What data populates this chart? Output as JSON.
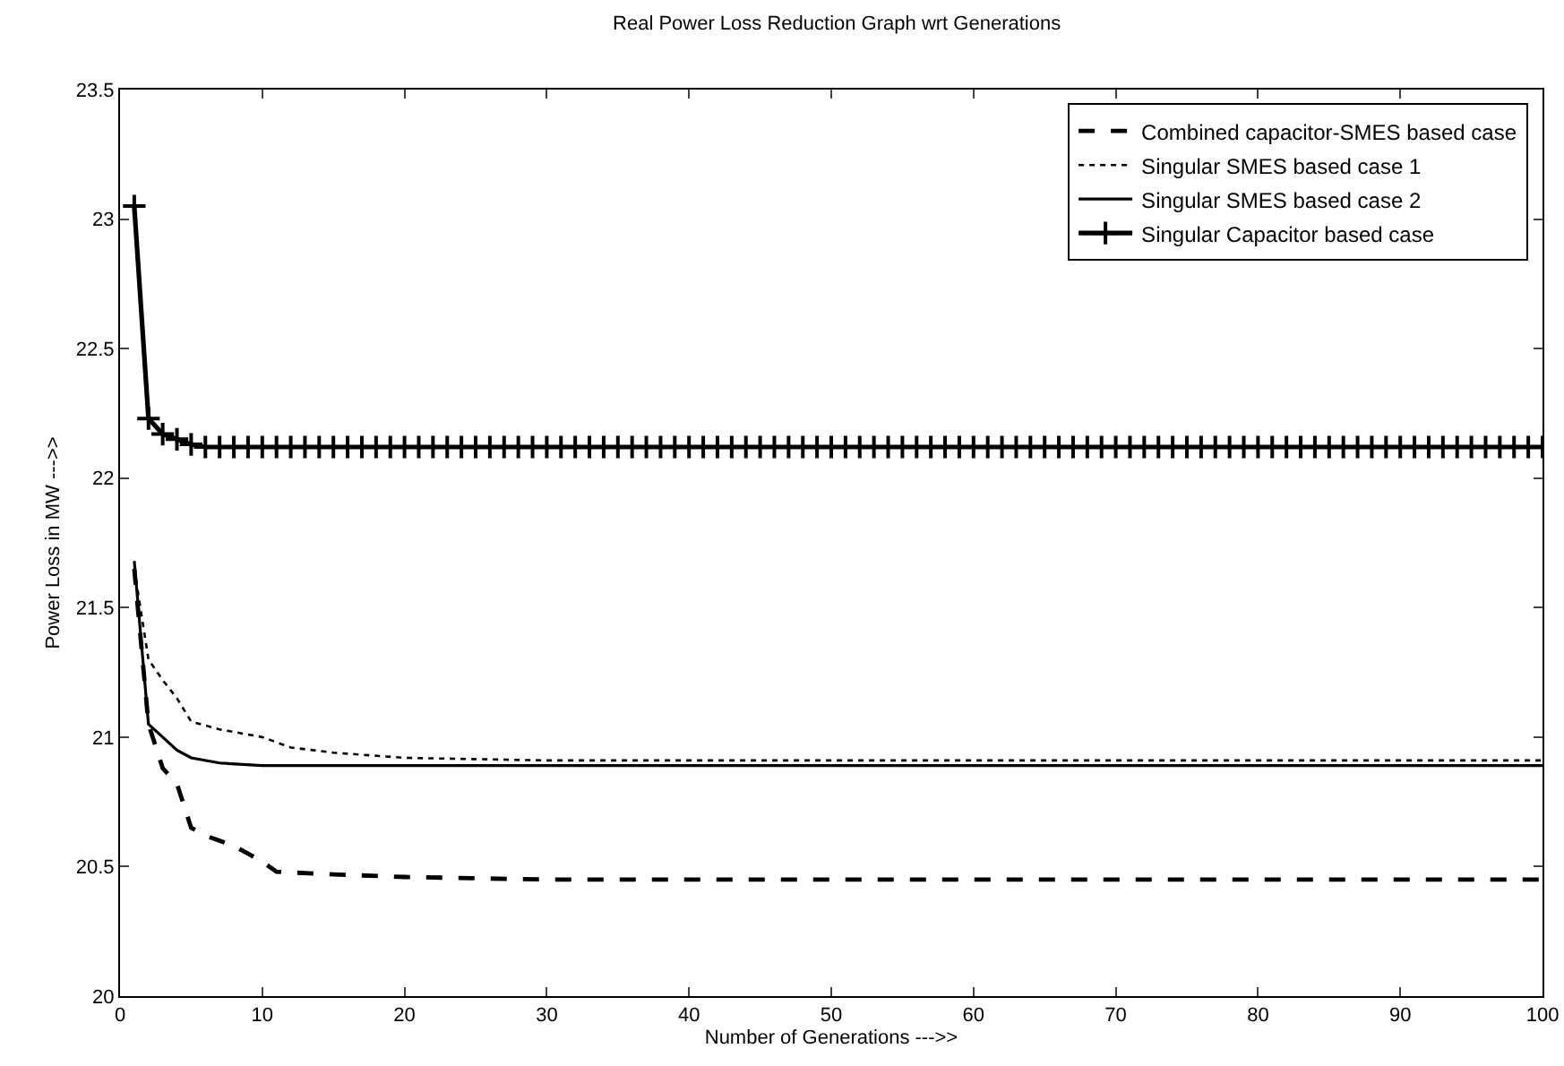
{
  "chart_data": {
    "type": "line",
    "title": "Real Power Loss Reduction Graph wrt Generations",
    "xlabel": "Number of Generations --->>",
    "ylabel": "Power Loss in MW --->>",
    "xlim": [
      0,
      100
    ],
    "xticks": [
      0,
      10,
      20,
      30,
      40,
      50,
      60,
      70,
      80,
      90,
      100
    ],
    "ylim": [
      20,
      23.5
    ],
    "yticks": [
      20,
      20.5,
      21,
      21.5,
      22,
      22.5,
      23,
      23.5
    ],
    "grid": false,
    "legend": "top right",
    "marker": "none",
    "series": [
      {
        "name": "Combined capacitor-SMES based case",
        "color": "#000000",
        "line_style": "dashed",
        "x": [
          1,
          2,
          3,
          4,
          5,
          6,
          8,
          10,
          11,
          15,
          20,
          30,
          100
        ],
        "values": [
          21.65,
          21.05,
          20.88,
          20.82,
          20.65,
          20.62,
          20.58,
          20.52,
          20.48,
          20.47,
          20.46,
          20.45,
          20.45
        ]
      },
      {
        "name": "Singular SMES based case 1",
        "color": "#000000",
        "line_style": "dotted",
        "x": [
          1,
          2,
          3,
          4,
          5,
          7,
          10,
          12,
          15,
          20,
          30,
          100
        ],
        "values": [
          21.65,
          21.3,
          21.22,
          21.15,
          21.06,
          21.03,
          21.0,
          20.96,
          20.94,
          20.92,
          20.91,
          20.91
        ]
      },
      {
        "name": "Singular SMES based case 2",
        "color": "#000000",
        "line_style": "solid",
        "x": [
          1,
          2,
          3,
          4,
          5,
          7,
          10,
          100
        ],
        "values": [
          21.68,
          21.05,
          21.0,
          20.95,
          20.92,
          20.9,
          20.89,
          20.89
        ]
      },
      {
        "name": "Singular Capacitor based case",
        "color": "#000000",
        "line_style": "solid",
        "marker": "cross",
        "x": [
          1,
          2,
          3,
          4,
          5,
          6,
          7,
          8,
          9,
          10,
          11,
          12,
          13,
          14,
          15,
          16,
          17,
          18,
          19,
          20,
          21,
          22,
          23,
          24,
          25,
          26,
          27,
          28,
          29,
          30,
          31,
          32,
          33,
          34,
          35,
          36,
          37,
          38,
          39,
          40,
          41,
          42,
          43,
          44,
          45,
          46,
          47,
          48,
          49,
          50,
          51,
          52,
          53,
          54,
          55,
          56,
          57,
          58,
          59,
          60,
          61,
          62,
          63,
          64,
          65,
          66,
          67,
          68,
          69,
          70,
          71,
          72,
          73,
          74,
          75,
          76,
          77,
          78,
          79,
          80,
          81,
          82,
          83,
          84,
          85,
          86,
          87,
          88,
          89,
          90,
          91,
          92,
          93,
          94,
          95,
          96,
          97,
          98,
          99,
          100
        ],
        "values": [
          23.05,
          22.23,
          22.17,
          22.15,
          22.13,
          22.12,
          22.12,
          22.12,
          22.12,
          22.12,
          22.12,
          22.12,
          22.12,
          22.12,
          22.12,
          22.12,
          22.12,
          22.12,
          22.12,
          22.12,
          22.12,
          22.12,
          22.12,
          22.12,
          22.12,
          22.12,
          22.12,
          22.12,
          22.12,
          22.12,
          22.12,
          22.12,
          22.12,
          22.12,
          22.12,
          22.12,
          22.12,
          22.12,
          22.12,
          22.12,
          22.12,
          22.12,
          22.12,
          22.12,
          22.12,
          22.12,
          22.12,
          22.12,
          22.12,
          22.12,
          22.12,
          22.12,
          22.12,
          22.12,
          22.12,
          22.12,
          22.12,
          22.12,
          22.12,
          22.12,
          22.12,
          22.12,
          22.12,
          22.12,
          22.12,
          22.12,
          22.12,
          22.12,
          22.12,
          22.12,
          22.12,
          22.12,
          22.12,
          22.12,
          22.12,
          22.12,
          22.12,
          22.12,
          22.12,
          22.12,
          22.12,
          22.12,
          22.12,
          22.12,
          22.12,
          22.12,
          22.12,
          22.12,
          22.12,
          22.12,
          22.12,
          22.12,
          22.12,
          22.12,
          22.12,
          22.12,
          22.12,
          22.12,
          22.12,
          22.12
        ]
      }
    ]
  }
}
